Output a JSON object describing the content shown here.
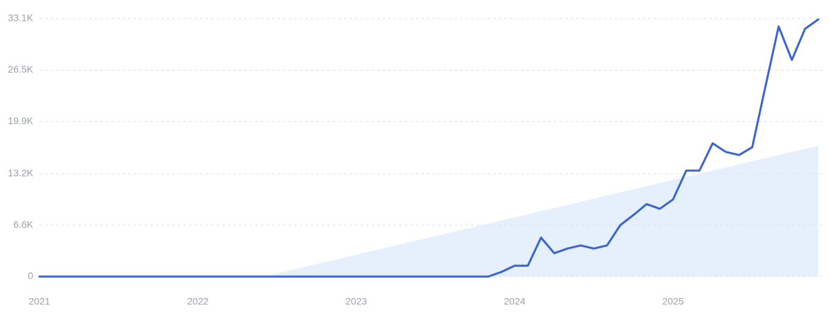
{
  "chart_data": {
    "type": "line",
    "categories": [
      "2021",
      null,
      null,
      null,
      null,
      null,
      null,
      null,
      null,
      null,
      null,
      null,
      "2022",
      null,
      null,
      null,
      null,
      null,
      null,
      null,
      null,
      null,
      null,
      null,
      "2023",
      null,
      null,
      null,
      null,
      null,
      null,
      null,
      null,
      null,
      null,
      null,
      "2024",
      null,
      null,
      null,
      null,
      null,
      null,
      null,
      null,
      null,
      null,
      null,
      "2025",
      null,
      null,
      null,
      null,
      null,
      null,
      null,
      null,
      null,
      null,
      null
    ],
    "values": [
      0,
      0,
      0,
      0,
      0,
      0,
      0,
      0,
      0,
      0,
      0,
      0,
      0,
      0,
      0,
      0,
      0,
      0,
      0,
      0,
      0,
      0,
      0,
      0,
      0,
      0,
      0,
      0,
      0,
      0,
      0,
      0,
      0,
      0,
      0,
      600,
      1400,
      1400,
      5000,
      3000,
      3600,
      4000,
      3600,
      4000,
      6600,
      7900,
      9300,
      8700,
      9900,
      13600,
      13600,
      17100,
      16000,
      15600,
      16600,
      24400,
      32100,
      27800,
      31800,
      33000
    ],
    "color": "#3a64d1",
    "trend_values": [
      null,
      null,
      null,
      null,
      null,
      null,
      null,
      null,
      null,
      null,
      null,
      null,
      null,
      null,
      null,
      null,
      null,
      0,
      400,
      800,
      1200,
      1600,
      2000,
      2400,
      2800,
      3200,
      3600,
      4000,
      4400,
      4800,
      5200,
      5600,
      6000,
      6400,
      6800,
      7200,
      7600,
      8000,
      8400,
      8800,
      9200,
      9600,
      10000,
      10400,
      10800,
      11200,
      11600,
      12000,
      12400,
      12800,
      13200,
      13600,
      14000,
      14400,
      14800,
      15200,
      15600,
      16000,
      16400,
      16800
    ],
    "trend_color": "#e6effc",
    "ylim": [
      0,
      33100
    ],
    "yticks": [
      0,
      {
        "value": 6600,
        "label": "6.6K"
      },
      {
        "value": 13200,
        "label": "13.2K"
      },
      {
        "value": 19900,
        "label": "19.9K"
      },
      {
        "value": 26500,
        "label": "26.5K"
      },
      {
        "value": 33100,
        "label": "33.1K"
      }
    ],
    "grid": true
  }
}
